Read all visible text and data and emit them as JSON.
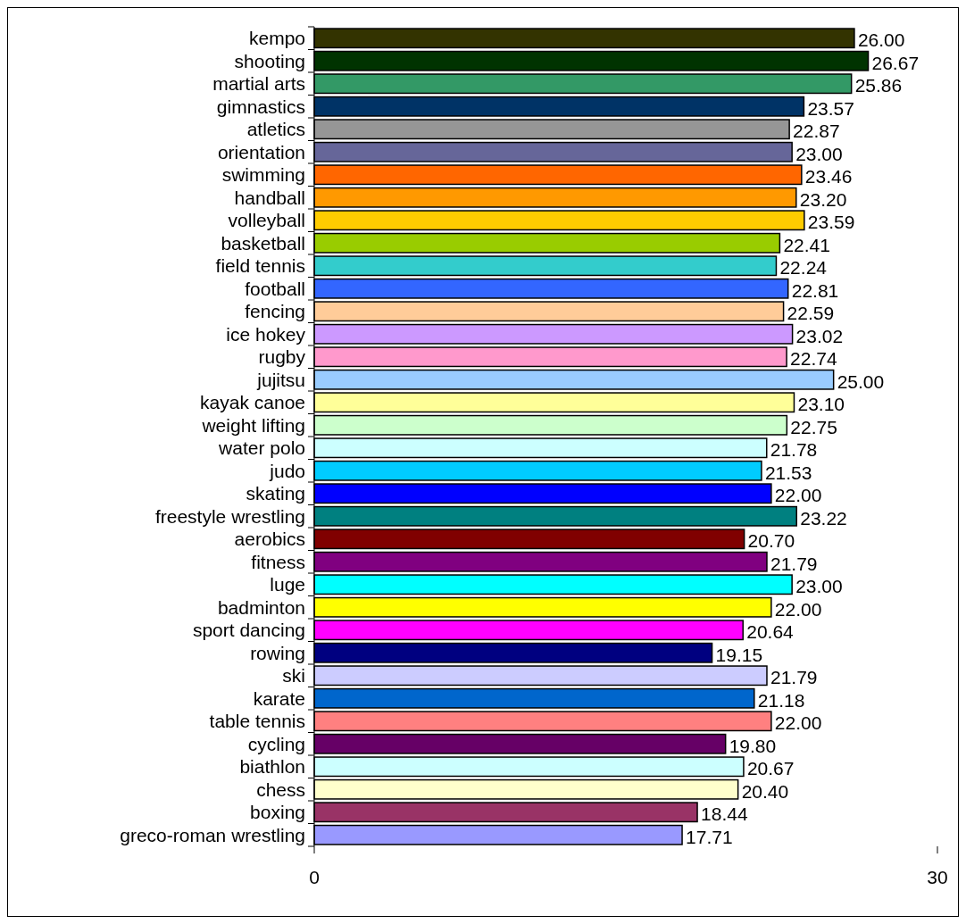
{
  "chart_data": {
    "type": "bar",
    "orientation": "horizontal",
    "categories": [
      "kempo",
      "shooting",
      "martial arts",
      "gimnastics",
      "atletics",
      "orientation",
      "swimming",
      "handball",
      "volleyball",
      "basketball",
      "field tennis",
      "football",
      "fencing",
      "ice hokey",
      "rugby",
      "jujitsu",
      "kayak canoe",
      "weight lifting",
      "water polo",
      "judo",
      "skating",
      "freestyle wrestling",
      "aerobics",
      "fitness",
      "luge",
      "badminton",
      "sport dancing",
      "rowing",
      "ski",
      "karate",
      "table tennis",
      "cycling",
      "biathlon",
      "chess",
      "boxing",
      "greco-roman wrestling"
    ],
    "values": [
      26,
      26.67,
      25.86,
      23.57,
      22.87,
      23,
      23.46,
      23.2,
      23.59,
      22.41,
      22.24,
      22.81,
      22.59,
      23.02,
      22.74,
      25,
      23.1,
      22.75,
      21.78,
      21.53,
      22,
      23.22,
      20.7,
      21.79,
      23,
      22,
      20.64,
      19.15,
      21.79,
      21.18,
      22,
      19.8,
      20.67,
      20.4,
      18.44,
      17.71
    ],
    "value_labels": [
      "26.00",
      "26.67",
      "25.86",
      "23.57",
      "22.87",
      "23.00",
      "23.46",
      "23.20",
      "23.59",
      "22.41",
      "22.24",
      "22.81",
      "22.59",
      "23.02",
      "22.74",
      "25.00",
      "23.10",
      "22.75",
      "21.78",
      "21.53",
      "22.00",
      "23.22",
      "20.70",
      "21.79",
      "23.00",
      "22.00",
      "20.64",
      "19.15",
      "21.79",
      "21.18",
      "22.00",
      "19.80",
      "20.67",
      "20.40",
      "18.44",
      "17.71"
    ],
    "colors": [
      "#333300",
      "#003300",
      "#339966",
      "#003366",
      "#969696",
      "#666699",
      "#ff6600",
      "#ff9900",
      "#ffcc00",
      "#99cc00",
      "#33cccc",
      "#3366ff",
      "#ffcc99",
      "#cc99ff",
      "#ff99cc",
      "#99ccff",
      "#ffff99",
      "#ccffcc",
      "#ccffff",
      "#00ccff",
      "#0000ff",
      "#008080",
      "#800000",
      "#800080",
      "#00ffff",
      "#ffff00",
      "#ff00ff",
      "#000080",
      "#ccccff",
      "#0066cc",
      "#ff8080",
      "#660066",
      "#ccffff",
      "#ffffcc",
      "#993366",
      "#9999ff"
    ],
    "xlim": [
      0,
      30
    ],
    "xticks": [
      0,
      30
    ],
    "grid": false
  }
}
